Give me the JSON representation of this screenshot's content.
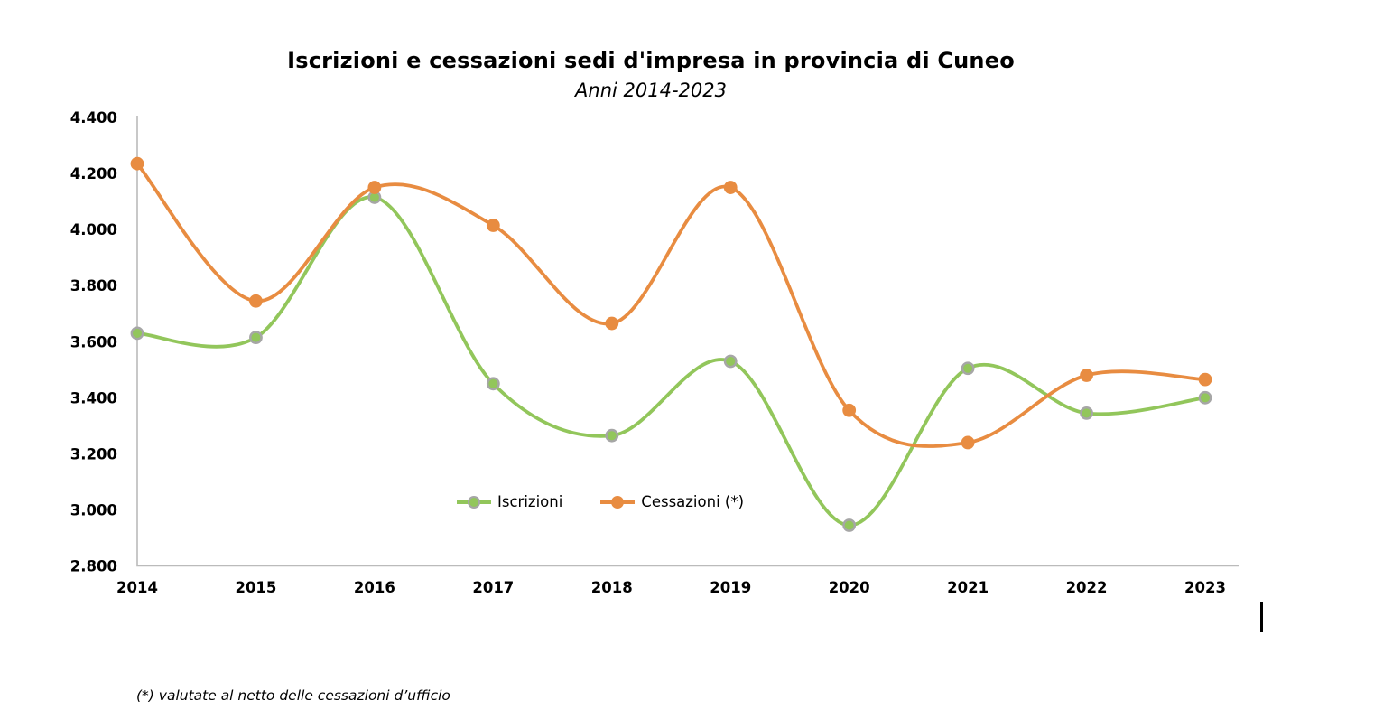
{
  "header": {
    "title": "Iscrizioni e cessazioni sedi d'impresa in provincia di Cuneo",
    "subtitle": "Anni 2014-2023"
  },
  "footnote": "(*) valutate al netto delle cessazioni d’ufficio",
  "chart_data": {
    "type": "line",
    "title": "Iscrizioni e cessazioni sedi d'impresa in provincia di Cuneo",
    "subtitle": "Anni 2014-2023",
    "categories": [
      "2014",
      "2015",
      "2016",
      "2017",
      "2018",
      "2019",
      "2020",
      "2021",
      "2022",
      "2023"
    ],
    "series": [
      {
        "name": "Iscrizioni",
        "color": "#92C65B",
        "marker_ring": "#A6A6A6",
        "values": [
          3630,
          3615,
          4115,
          3450,
          3265,
          3530,
          2945,
          3505,
          3345,
          3400
        ]
      },
      {
        "name": "Cessazioni (*)",
        "color": "#E88C41",
        "marker_ring": "#E88C41",
        "values": [
          4235,
          3745,
          4150,
          4015,
          3665,
          4150,
          3355,
          3240,
          3480,
          3465
        ]
      }
    ],
    "ylim": [
      2800,
      4400
    ],
    "ytick_step": 200,
    "ytick_labels": [
      "2.800",
      "3.000",
      "3.200",
      "3.400",
      "3.600",
      "3.800",
      "4.000",
      "4.200",
      "4.400"
    ],
    "xlabel": "",
    "ylabel": "",
    "grid": false,
    "smooth": true,
    "legend_position": "inside-bottom-center",
    "axis_color": "#BBBBBB"
  }
}
